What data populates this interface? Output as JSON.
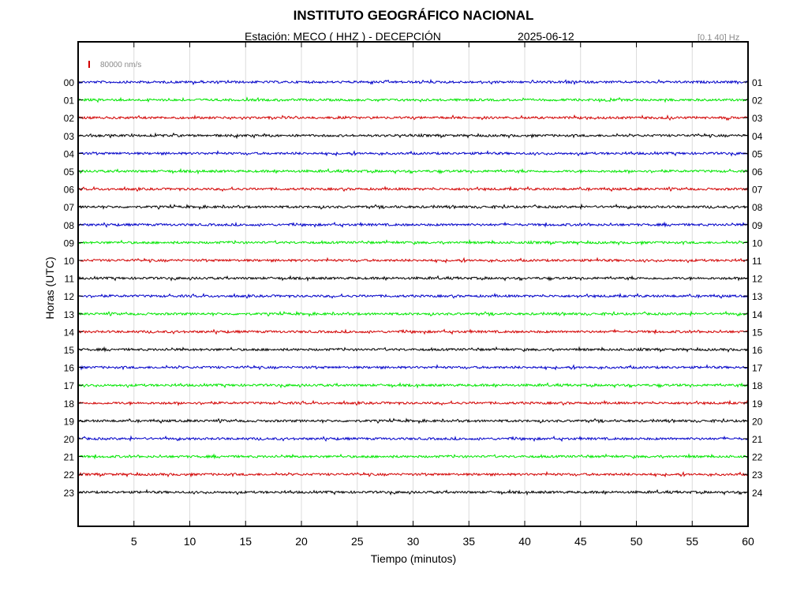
{
  "header": {
    "title": "INSTITUTO GEOGRÁFICO NACIONAL",
    "station": "Estación:  MECO ( HHZ ) - DECEPCIÓN",
    "date": "2025-06-12",
    "filter": "[0.1 40] Hz"
  },
  "scale_label": "80000 nm/s",
  "colors": {
    "cycle": [
      "#0000c8",
      "#00e600",
      "#d20000",
      "#000000"
    ],
    "scale_marker": "#d20000",
    "grid": "#dcdcdc"
  },
  "chart_data": {
    "type": "line",
    "title": "INSTITUTO GEOGRÁFICO NACIONAL",
    "xlabel": "Tiempo (minutos)",
    "ylabel": "Horas (UTC)",
    "xlim": [
      0,
      60
    ],
    "x_ticks": [
      5,
      10,
      15,
      20,
      25,
      30,
      35,
      40,
      45,
      50,
      55,
      60
    ],
    "grid": "vertical",
    "left_tick_labels": [
      "00",
      "01",
      "02",
      "03",
      "04",
      "05",
      "06",
      "07",
      "08",
      "09",
      "10",
      "11",
      "12",
      "13",
      "14",
      "15",
      "16",
      "17",
      "18",
      "19",
      "20",
      "21",
      "22",
      "23"
    ],
    "right_tick_labels": [
      "01",
      "02",
      "03",
      "04",
      "05",
      "06",
      "07",
      "08",
      "09",
      "10",
      "11",
      "12",
      "13",
      "14",
      "15",
      "16",
      "17",
      "18",
      "19",
      "20",
      "21",
      "22",
      "23",
      "24"
    ],
    "series": [
      {
        "hour": "00",
        "color": "#0000c8"
      },
      {
        "hour": "01",
        "color": "#00e600"
      },
      {
        "hour": "02",
        "color": "#d20000"
      },
      {
        "hour": "03",
        "color": "#000000"
      },
      {
        "hour": "04",
        "color": "#0000c8"
      },
      {
        "hour": "05",
        "color": "#00e600"
      },
      {
        "hour": "06",
        "color": "#d20000"
      },
      {
        "hour": "07",
        "color": "#000000"
      },
      {
        "hour": "08",
        "color": "#0000c8"
      },
      {
        "hour": "09",
        "color": "#00e600"
      },
      {
        "hour": "10",
        "color": "#d20000"
      },
      {
        "hour": "11",
        "color": "#000000"
      },
      {
        "hour": "12",
        "color": "#0000c8"
      },
      {
        "hour": "13",
        "color": "#00e600"
      },
      {
        "hour": "14",
        "color": "#d20000"
      },
      {
        "hour": "15",
        "color": "#000000"
      },
      {
        "hour": "16",
        "color": "#0000c8"
      },
      {
        "hour": "17",
        "color": "#00e600"
      },
      {
        "hour": "18",
        "color": "#d20000"
      },
      {
        "hour": "19",
        "color": "#000000"
      },
      {
        "hour": "20",
        "color": "#0000c8"
      },
      {
        "hour": "21",
        "color": "#00e600"
      },
      {
        "hour": "22",
        "color": "#d20000"
      },
      {
        "hour": "23",
        "color": "#000000"
      }
    ]
  }
}
